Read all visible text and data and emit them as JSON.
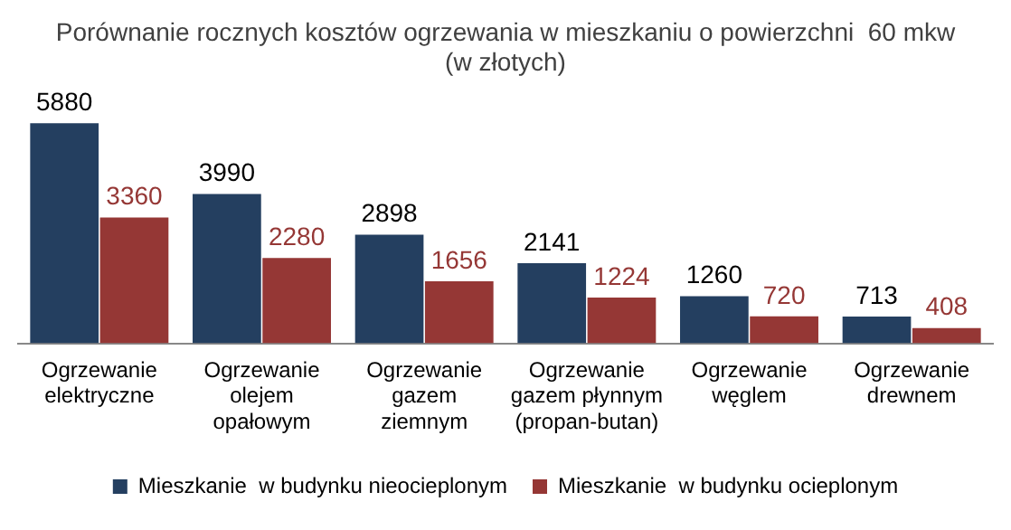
{
  "chart_data": {
    "type": "bar",
    "title": "Porównanie rocznych kosztów ogrzewania w mieszkaniu o powierzchni  60 mkw\n(w złotych)",
    "categories": [
      "Ogrzewanie\nelektryczne",
      "Ogrzewanie\nolejem\nopałowym",
      "Ogrzewanie\ngazem\nziemnym",
      "Ogrzewanie\ngazem płynnym\n(propan-butan)",
      "Ogrzewanie\nwęglem",
      "Ogrzewanie\ndrewnem"
    ],
    "series": [
      {
        "name": "Mieszkanie  w budynku nieocieplonym",
        "color": "#243f60",
        "values": [
          5880,
          3990,
          2898,
          2141,
          1260,
          713
        ]
      },
      {
        "name": "Mieszkanie  w budynku ocieplonym",
        "color": "#953735",
        "values": [
          3360,
          2280,
          1656,
          1224,
          720,
          408
        ]
      }
    ],
    "data_labels": true,
    "legend": "bottom",
    "grid": false
  }
}
